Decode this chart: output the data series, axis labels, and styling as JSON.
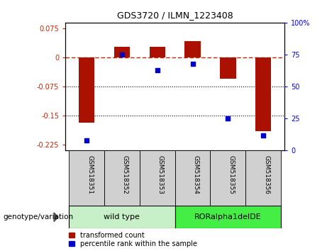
{
  "title": "GDS3720 / ILMN_1223408",
  "samples": [
    "GSM518351",
    "GSM518352",
    "GSM518353",
    "GSM518354",
    "GSM518355",
    "GSM518356"
  ],
  "red_values": [
    -0.168,
    0.028,
    0.028,
    0.043,
    -0.055,
    -0.19
  ],
  "blue_values_pct": [
    8,
    75,
    63,
    68,
    25,
    12
  ],
  "group_labels": [
    "wild type",
    "RORalpha1delDE"
  ],
  "group_colors": [
    "#c8f0c8",
    "#44ee44"
  ],
  "ylim_left": [
    -0.24,
    0.09
  ],
  "ylim_right": [
    0,
    100
  ],
  "yticks_left": [
    0.075,
    0,
    -0.075,
    -0.15,
    -0.225
  ],
  "yticks_left_labels": [
    "0.075",
    "0",
    "-0.075",
    "-0.15",
    "-0.225"
  ],
  "yticks_right": [
    100,
    75,
    50,
    25,
    0
  ],
  "yticks_right_labels": [
    "100%",
    "75",
    "50",
    "25",
    "0"
  ],
  "bar_color": "#aa1100",
  "dot_color": "#0000cc",
  "legend_red": "transformed count",
  "legend_blue": "percentile rank within the sample",
  "genotype_label": "genotype/variation",
  "background_color": "#ffffff"
}
